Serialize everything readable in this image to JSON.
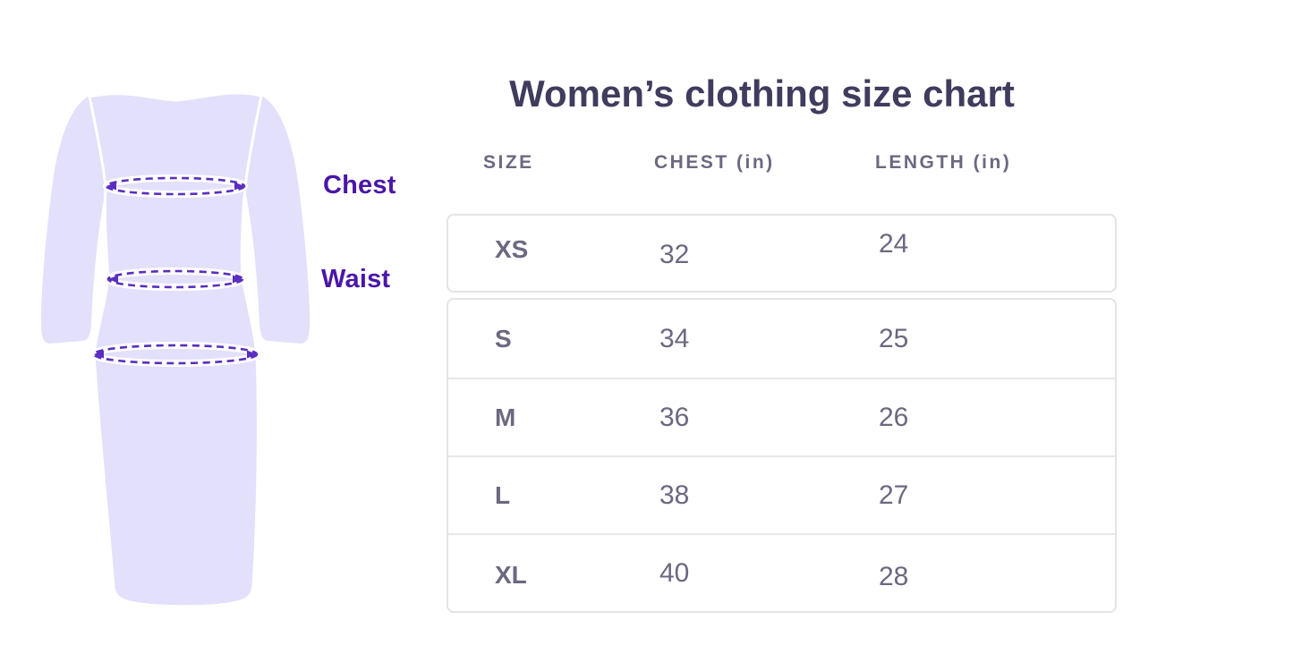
{
  "illustration": {
    "chest_label": "Chest",
    "waist_label": "Waist",
    "dress_fill": "#e3e0fb",
    "guide_color": "#5a2ec0",
    "label_color": "#4a16a8",
    "guides": [
      "chest-line",
      "waist-line",
      "hip-line"
    ]
  },
  "table": {
    "title": "Women’s clothing size chart",
    "columns": [
      "SIZE",
      "CHEST (in)",
      "LENGTH (in)"
    ],
    "rows": [
      [
        "XS",
        "32",
        "24"
      ],
      [
        "S",
        "34",
        "25"
      ],
      [
        "M",
        "36",
        "26"
      ],
      [
        "L",
        "38",
        "27"
      ],
      [
        "XL",
        "40",
        "28"
      ]
    ]
  },
  "chart_data": {
    "type": "table",
    "title": "Women’s clothing size chart",
    "columns": [
      "SIZE",
      "CHEST (in)",
      "LENGTH (in)"
    ],
    "rows": [
      {
        "size": "XS",
        "chest_in": 32,
        "length_in": 24
      },
      {
        "size": "S",
        "chest_in": 34,
        "length_in": 25
      },
      {
        "size": "M",
        "chest_in": 36,
        "length_in": 26
      },
      {
        "size": "L",
        "chest_in": 38,
        "length_in": 27
      },
      {
        "size": "XL",
        "chest_in": 40,
        "length_in": 28
      }
    ],
    "annotations": [
      "Chest",
      "Waist"
    ],
    "colors": {
      "title": "#3f3c5e",
      "header_text": "#716d88",
      "cell_text": "#6b6880",
      "accent_purple": "#4a16a8",
      "dress_fill": "#e3e0fb",
      "card_border": "#e4e3e7"
    }
  }
}
